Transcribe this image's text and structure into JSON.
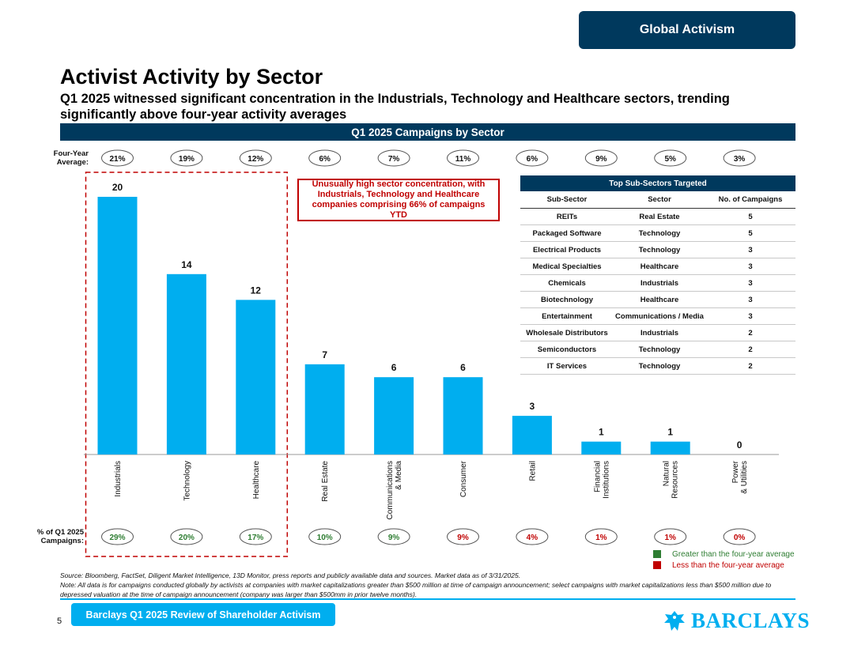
{
  "header": {
    "section_badge": "Global Activism"
  },
  "title": "Activist Activity by Sector",
  "subtitle": "Q1 2025 witnessed significant concentration in the Industrials, Technology and Healthcare sectors, trending significantly above four-year activity averages",
  "chart_banner": "Q1 2025 Campaigns by Sector",
  "four_year_label": "Four-Year Average:",
  "share_label": "% of Q1 2025 Campaigns:",
  "callout": "Unusually high sector concentration, with Industrials, Technology and Healthcare companies comprising 66% of campaigns YTD",
  "chart_data": {
    "type": "bar",
    "title": "Q1 2025 Campaigns by Sector",
    "categories": [
      "Industrials",
      "Technology",
      "Healthcare",
      "Real Estate",
      "Communications & Media",
      "Consumer",
      "Retail",
      "Financial Institutions",
      "Natural Resources",
      "Power & Utilities"
    ],
    "category_lines": [
      [
        "Industrials"
      ],
      [
        "Technology"
      ],
      [
        "Healthcare"
      ],
      [
        "Real Estate"
      ],
      [
        "Communications",
        "& Media"
      ],
      [
        "Consumer"
      ],
      [
        "Retail"
      ],
      [
        "Financial",
        "Institutions"
      ],
      [
        "Natural",
        "Resources"
      ],
      [
        "Power",
        "& Utilities"
      ]
    ],
    "values": [
      20,
      14,
      12,
      7,
      6,
      6,
      3,
      1,
      1,
      0
    ],
    "four_year_average": [
      "21%",
      "19%",
      "12%",
      "6%",
      "7%",
      "11%",
      "6%",
      "9%",
      "5%",
      "3%"
    ],
    "q1_share": [
      "29%",
      "20%",
      "17%",
      "10%",
      "9%",
      "9%",
      "4%",
      "1%",
      "1%",
      "0%"
    ],
    "share_status": [
      "above",
      "above",
      "above",
      "above",
      "above",
      "below",
      "below",
      "below",
      "below",
      "below"
    ],
    "highlight_categories": [
      "Industrials",
      "Technology",
      "Healthcare"
    ],
    "bar_color": "#00aeef",
    "ylim": [
      0,
      20
    ]
  },
  "table": {
    "title": "Top Sub-Sectors Targeted",
    "headers": [
      "Sub-Sector",
      "Sector",
      "No. of Campaigns"
    ],
    "rows": [
      [
        "REITs",
        "Real Estate",
        "5"
      ],
      [
        "Packaged Software",
        "Technology",
        "5"
      ],
      [
        "Electrical Products",
        "Technology",
        "3"
      ],
      [
        "Medical Specialties",
        "Healthcare",
        "3"
      ],
      [
        "Chemicals",
        "Industrials",
        "3"
      ],
      [
        "Biotechnology",
        "Healthcare",
        "3"
      ],
      [
        "Entertainment",
        "Communications / Media",
        "3"
      ],
      [
        "Wholesale Distributors",
        "Industrials",
        "2"
      ],
      [
        "Semiconductors",
        "Technology",
        "2"
      ],
      [
        "IT Services",
        "Technology",
        "2"
      ]
    ]
  },
  "legend": {
    "above": "Greater than the four-year average",
    "below": "Less than the four-year average"
  },
  "colors": {
    "navy": "#00395d",
    "cyan": "#00aeef",
    "green": "#2e7d32",
    "red": "#c00000"
  },
  "source_note": "Source: Bloomberg, FactSet, Diligent Market Intelligence, 13D Monitor, press reports and publicly available data and sources. Market data as of 3/31/2025.",
  "footnote": "Note: All data is for campaigns conducted globally by activists at companies with market capitalizations greater than $500 million at time of campaign announcement; select campaigns with market capitalizations less than $500 million due to depressed valuation at the time of campaign announcement (company was larger than $500mm in prior twelve months).",
  "footer": {
    "page_number": "5",
    "report_title": "Barclays Q1 2025 Review of Shareholder Activism",
    "logo_text": "BARCLAYS"
  }
}
